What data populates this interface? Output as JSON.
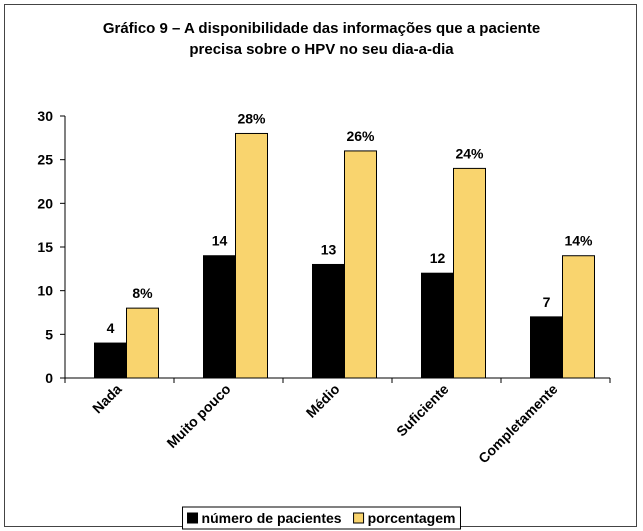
{
  "chart_data": {
    "type": "bar",
    "title": "Gráfico 9 – A disponibilidade das informações que a paciente precisa sobre o HPV no seu dia-a-dia",
    "categories": [
      "Nada",
      "Muito pouco",
      "Médio",
      "Suficiente",
      "Completamente"
    ],
    "series": [
      {
        "name": "número de pacientes",
        "color": "#000000",
        "values": [
          4,
          14,
          13,
          12,
          7
        ]
      },
      {
        "name": "porcentagem",
        "color": "#f9d46e",
        "values": [
          8,
          28,
          26,
          24,
          14
        ],
        "value_labels": [
          "8%",
          "28%",
          "26%",
          "24%",
          "14%"
        ]
      }
    ],
    "ylim": [
      0,
      30
    ],
    "yticks": [
      0,
      5,
      10,
      15,
      20,
      25,
      30
    ],
    "grid": false,
    "legend": "bottom"
  }
}
